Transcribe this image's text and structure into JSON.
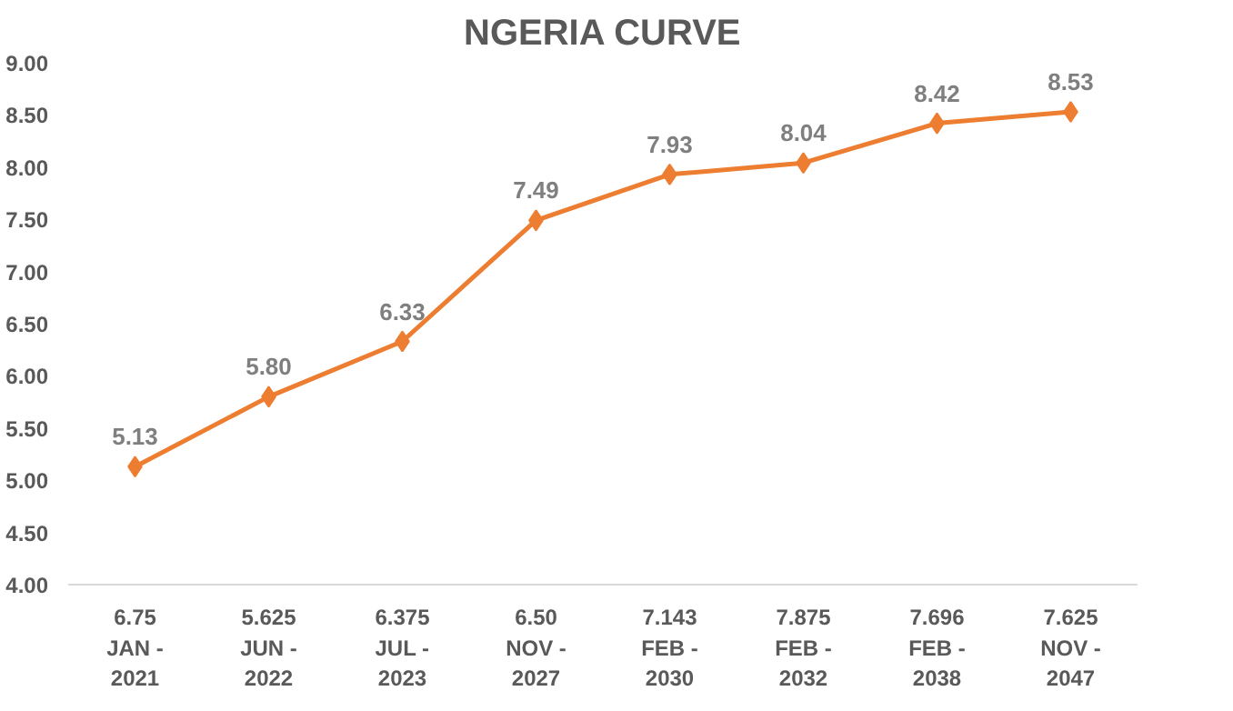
{
  "chart_data": {
    "type": "line",
    "title": "NGERIA CURVE",
    "categories": [
      "6.75\nJAN -\n2021",
      "5.625\nJUN -\n2022",
      "6.375\nJUL -\n2023",
      "6.50\nNOV -\n2027",
      "7.143\nFEB -\n2030",
      "7.875\nFEB -\n2032",
      "7.696\nFEB -\n2038",
      "7.625\nNOV -\n2047"
    ],
    "series": [
      {
        "color": "#ed7d31",
        "values": [
          5.13,
          5.8,
          6.33,
          7.49,
          7.93,
          8.04,
          8.42,
          8.53
        ]
      }
    ],
    "ylim": [
      4,
      9
    ],
    "yticks": [
      {
        "value": 4,
        "label": "4.00"
      },
      {
        "value": 4.5,
        "label": "4.50"
      },
      {
        "value": 5,
        "label": "5.00"
      },
      {
        "value": 5.5,
        "label": "5.50"
      },
      {
        "value": 6,
        "label": "6.00"
      },
      {
        "value": 6.5,
        "label": "6.50"
      },
      {
        "value": 7,
        "label": "7.00"
      },
      {
        "value": 7.5,
        "label": "7.50"
      },
      {
        "value": 8,
        "label": "8.00"
      },
      {
        "value": 8.5,
        "label": "8.50"
      },
      {
        "value": 9,
        "label": "9.00"
      }
    ],
    "value_labels": [
      "5.13",
      "5.80",
      "6.33",
      "7.49",
      "7.93",
      "8.04",
      "8.42",
      "8.53"
    ],
    "marker": "diamond",
    "line_style": "solid",
    "grid": false
  }
}
